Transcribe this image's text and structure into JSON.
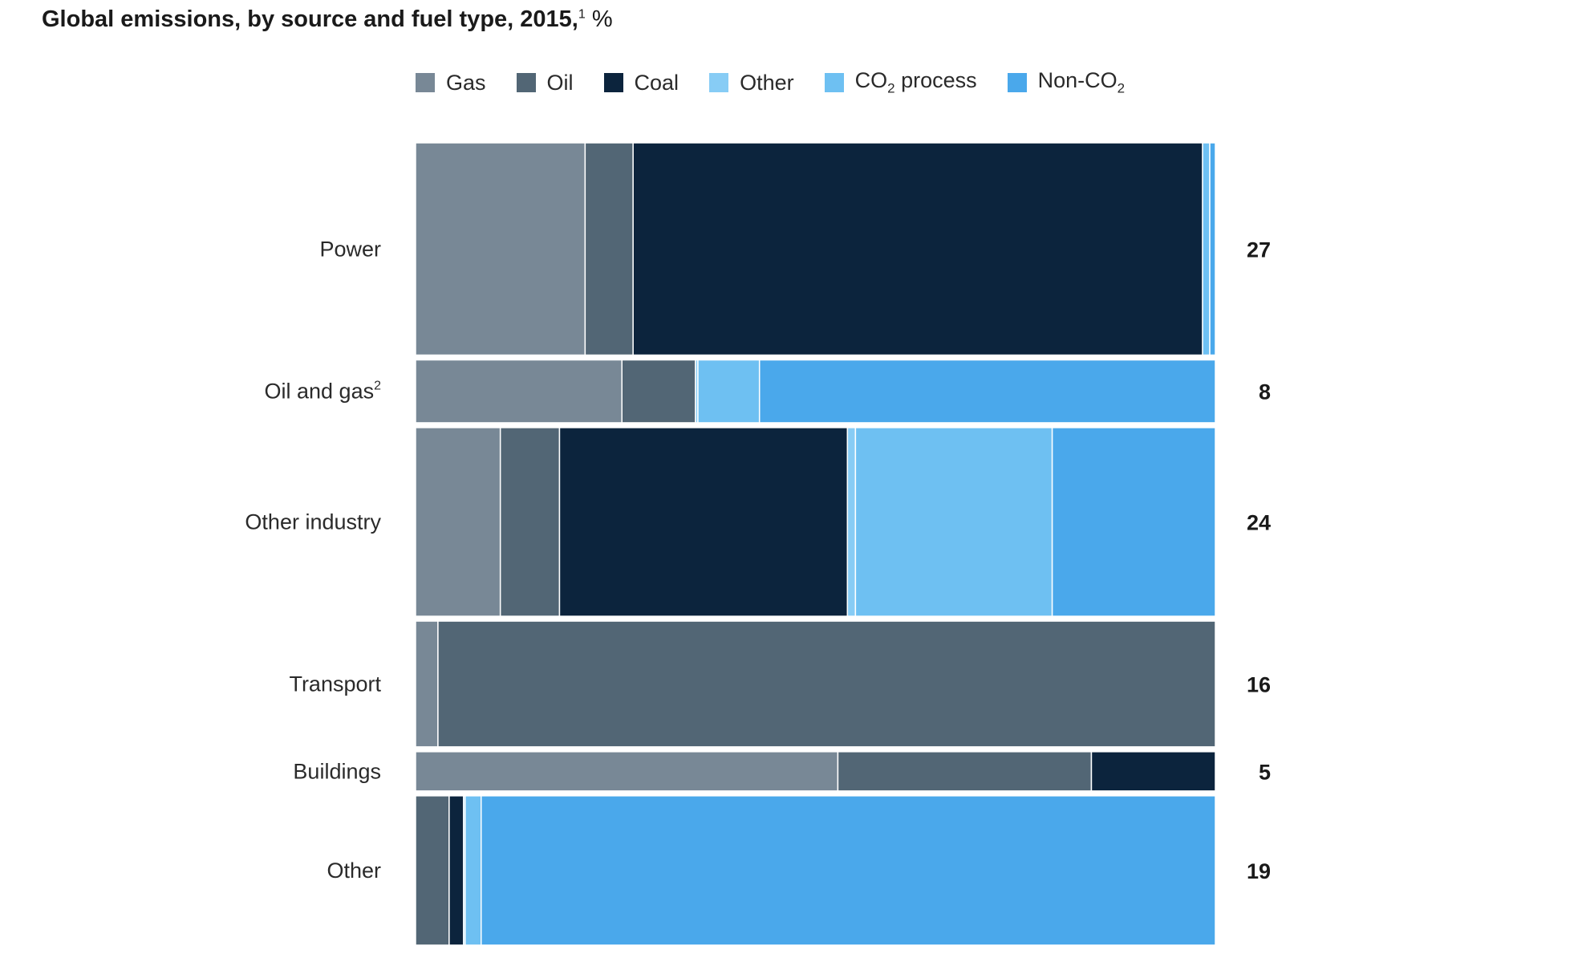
{
  "chart_data": {
    "type": "bar",
    "variant": "marimekko",
    "title": "Global emissions, by source and fuel type, 2015,",
    "title_footnote": "1",
    "title_unit": "%",
    "legend": [
      {
        "key": "gas",
        "label": "Gas",
        "color": "#788896"
      },
      {
        "key": "oil",
        "label": "Oil",
        "color": "#526675"
      },
      {
        "key": "coal",
        "label": "Coal",
        "color": "#0c243d"
      },
      {
        "key": "other",
        "label": "Other",
        "color": "#87ccf5"
      },
      {
        "key": "co2_process",
        "label": "CO",
        "label_sub": "2",
        "label_rest": " process",
        "color": "#6ec0f2"
      },
      {
        "key": "non_co2",
        "label": "Non-CO",
        "label_sub": "2",
        "color": "#4aa8eb"
      }
    ],
    "rows": [
      {
        "label": "Power",
        "sup": "",
        "total": 27,
        "segments": {
          "gas": 21.2,
          "oil": 6.0,
          "coal": 71.2,
          "other": 0,
          "co2_process": 0.9,
          "non_co2": 0.7
        }
      },
      {
        "label": "Oil and gas",
        "sup": "2",
        "total": 8,
        "segments": {
          "gas": 25.8,
          "oil": 9.2,
          "coal": 0,
          "other": 0.3,
          "co2_process": 7.7,
          "non_co2": 57.0
        }
      },
      {
        "label": "Other industry",
        "sup": "",
        "total": 24,
        "segments": {
          "gas": 10.6,
          "oil": 7.4,
          "coal": 36.0,
          "other": 1.0,
          "co2_process": 24.6,
          "non_co2": 20.4
        }
      },
      {
        "label": "Transport",
        "sup": "",
        "total": 16,
        "segments": {
          "gas": 2.8,
          "oil": 97.2,
          "coal": 0,
          "other": 0,
          "co2_process": 0,
          "non_co2": 0
        }
      },
      {
        "label": "Buildings",
        "sup": "",
        "total": 5,
        "segments": {
          "gas": 52.8,
          "oil": 31.7,
          "coal": 15.5,
          "other": 0,
          "co2_process": 0,
          "non_co2": 0
        }
      },
      {
        "label": "Other",
        "sup": "",
        "total": 19,
        "segments": {
          "gas": 0,
          "oil": 4.2,
          "coal": 1.8,
          "other": 0.2,
          "co2_process": 2.0,
          "non_co2": 91.8
        }
      }
    ]
  }
}
